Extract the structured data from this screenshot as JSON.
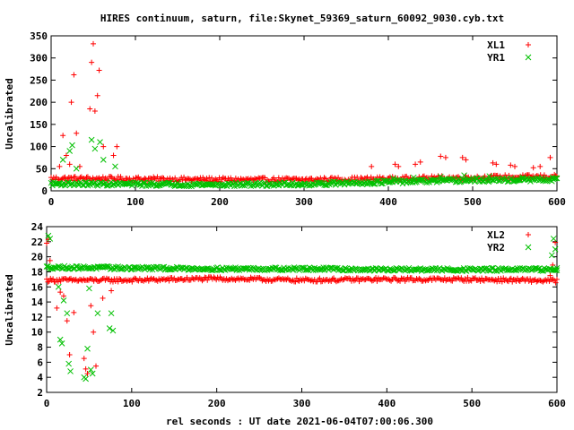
{
  "title": "HIRES continuum, saturn, file:Skynet_59369_saturn_60092_9030.cyb.txt",
  "colors": {
    "XL": "#ff0000",
    "YR": "#00c000"
  },
  "chart_data": [
    {
      "type": "scatter",
      "ylabel": "Uncalibrated",
      "xlabel": "",
      "xlim": [
        0,
        600
      ],
      "ylim": [
        0,
        350
      ],
      "xticks": [
        "0",
        "100",
        "200",
        "300",
        "400",
        "500",
        "600"
      ],
      "yticks": [
        "0",
        "50",
        "100",
        "150",
        "200",
        "250",
        "300",
        "350"
      ],
      "legend_position": "top-right",
      "series": [
        {
          "name": "XL1",
          "marker": "plus",
          "color": "#ff0000",
          "base": [
            [
              0,
              28
            ],
            [
              100,
              27
            ],
            [
              200,
              25
            ],
            [
              300,
              25
            ],
            [
              400,
              27
            ],
            [
              500,
              30
            ],
            [
              600,
              32
            ]
          ],
          "noise": 5,
          "spikes": [
            [
              10,
              55
            ],
            [
              14,
              125
            ],
            [
              18,
              80
            ],
            [
              22,
              60
            ],
            [
              24,
              200
            ],
            [
              27,
              262
            ],
            [
              30,
              130
            ],
            [
              34,
              55
            ],
            [
              46,
              185
            ],
            [
              48,
              290
            ],
            [
              50,
              332
            ],
            [
              52,
              180
            ],
            [
              55,
              215
            ],
            [
              57,
              272
            ],
            [
              62,
              100
            ],
            [
              74,
              80
            ],
            [
              78,
              100
            ],
            [
              380,
              55
            ],
            [
              408,
              60
            ],
            [
              412,
              55
            ],
            [
              432,
              60
            ],
            [
              438,
              65
            ],
            [
              462,
              78
            ],
            [
              468,
              75
            ],
            [
              488,
              75
            ],
            [
              492,
              70
            ],
            [
              524,
              63
            ],
            [
              528,
              60
            ],
            [
              545,
              58
            ],
            [
              550,
              55
            ],
            [
              572,
              52
            ],
            [
              580,
              55
            ],
            [
              592,
              75
            ]
          ]
        },
        {
          "name": "YR1",
          "marker": "cross",
          "color": "#00c000",
          "base": [
            [
              0,
              16
            ],
            [
              100,
              15
            ],
            [
              200,
              14
            ],
            [
              300,
              15
            ],
            [
              400,
              20
            ],
            [
              500,
              24
            ],
            [
              600,
              25
            ]
          ],
          "noise": 4,
          "spikes": [
            [
              14,
              70
            ],
            [
              22,
              90
            ],
            [
              25,
              103
            ],
            [
              30,
              50
            ],
            [
              48,
              115
            ],
            [
              52,
              95
            ],
            [
              58,
              110
            ],
            [
              62,
              70
            ],
            [
              76,
              55
            ],
            [
              406,
              28
            ],
            [
              430,
              30
            ],
            [
              462,
              32
            ],
            [
              490,
              35
            ],
            [
              520,
              33
            ],
            [
              560,
              30
            ],
            [
              595,
              30
            ]
          ]
        }
      ]
    },
    {
      "type": "scatter",
      "ylabel": "Uncalibrated",
      "xlabel": "rel seconds : UT date 2021-06-04T07:00:06.300",
      "xlim": [
        0,
        600
      ],
      "ylim": [
        2,
        24
      ],
      "xticks": [
        "0",
        "100",
        "200",
        "300",
        "400",
        "500",
        "600"
      ],
      "yticks": [
        "2",
        "4",
        "6",
        "8",
        "10",
        "12",
        "14",
        "16",
        "18",
        "20",
        "22",
        "24"
      ],
      "legend_position": "top-right",
      "series": [
        {
          "name": "XL2",
          "marker": "plus",
          "color": "#ff0000",
          "base": [
            [
              0,
              16.9
            ],
            [
              100,
              16.9
            ],
            [
              200,
              17.1
            ],
            [
              300,
              16.9
            ],
            [
              400,
              17.0
            ],
            [
              500,
              17.0
            ],
            [
              600,
              16.8
            ]
          ],
          "noise": 0.25,
          "spikes": [
            [
              0,
              21.8
            ],
            [
              2,
              22.3
            ],
            [
              4,
              19.5
            ],
            [
              12,
              13.2
            ],
            [
              16,
              15.3
            ],
            [
              20,
              14.8
            ],
            [
              24,
              11.5
            ],
            [
              27,
              7.0
            ],
            [
              32,
              12.6
            ],
            [
              44,
              6.5
            ],
            [
              46,
              5.1
            ],
            [
              48,
              4.5
            ],
            [
              52,
              13.5
            ],
            [
              55,
              10.0
            ],
            [
              58,
              5.5
            ],
            [
              66,
              14.5
            ],
            [
              76,
              15.5
            ],
            [
              592,
              17.5
            ],
            [
              595,
              18.9
            ],
            [
              598,
              21.9
            ]
          ]
        },
        {
          "name": "YR2",
          "marker": "cross",
          "color": "#00c000",
          "base": [
            [
              0,
              18.6
            ],
            [
              100,
              18.5
            ],
            [
              200,
              18.4
            ],
            [
              300,
              18.4
            ],
            [
              400,
              18.3
            ],
            [
              500,
              18.3
            ],
            [
              600,
              18.3
            ]
          ],
          "noise": 0.2,
          "spikes": [
            [
              2,
              22.8
            ],
            [
              4,
              22.4
            ],
            [
              14,
              16.0
            ],
            [
              16,
              9.0
            ],
            [
              18,
              8.5
            ],
            [
              20,
              14.2
            ],
            [
              24,
              12.5
            ],
            [
              26,
              5.8
            ],
            [
              28,
              4.8
            ],
            [
              44,
              4.0
            ],
            [
              46,
              3.8
            ],
            [
              48,
              7.8
            ],
            [
              50,
              15.8
            ],
            [
              52,
              5.0
            ],
            [
              54,
              4.5
            ],
            [
              60,
              12.5
            ],
            [
              74,
              10.5
            ],
            [
              76,
              12.5
            ],
            [
              78,
              10.2
            ],
            [
              594,
              20.2
            ],
            [
              596,
              22.4
            ],
            [
              598,
              21.0
            ],
            [
              600,
              18.5
            ]
          ]
        }
      ]
    }
  ]
}
